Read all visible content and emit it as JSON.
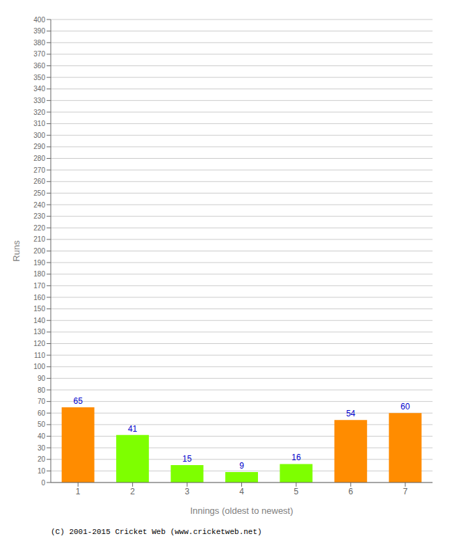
{
  "chart_data": {
    "type": "bar",
    "categories": [
      1,
      2,
      3,
      4,
      5,
      6,
      7
    ],
    "values": [
      65,
      41,
      15,
      9,
      16,
      54,
      60
    ],
    "colors": [
      "#ff8c00",
      "#7eff00",
      "#7eff00",
      "#7eff00",
      "#7eff00",
      "#ff8c00",
      "#ff8c00"
    ],
    "xlabel": "Innings (oldest to newest)",
    "ylabel": "Runs",
    "ylim": [
      0,
      400
    ],
    "yticks": [
      0,
      10,
      20,
      30,
      40,
      50,
      60,
      70,
      80,
      90,
      100,
      110,
      120,
      130,
      140,
      150,
      160,
      170,
      180,
      190,
      200,
      210,
      220,
      230,
      240,
      250,
      260,
      270,
      280,
      290,
      300,
      310,
      320,
      330,
      340,
      350,
      360,
      370,
      380,
      390,
      400
    ],
    "grid": true,
    "data_labels": true,
    "annotations": [
      "(C) 2001-2015 Cricket Web (www.cricketweb.net)"
    ]
  }
}
